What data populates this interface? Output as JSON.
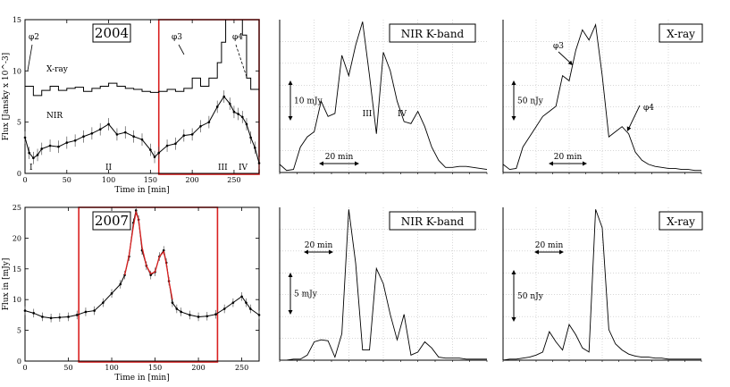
{
  "chart_data": [
    {
      "id": "p2004",
      "type": "line",
      "title": "2004",
      "xlabel": "Time in [min]",
      "ylabel": "Flux [Jansky x 10^-3]",
      "xlim": [
        0,
        280
      ],
      "ylim": [
        0,
        15
      ],
      "xticks": [
        "0",
        "50",
        "100",
        "150",
        "200",
        "250"
      ],
      "yticks": [
        "0",
        "5",
        "10",
        "15"
      ],
      "highlight": {
        "x": [
          160,
          280
        ],
        "color": "#d92020"
      },
      "labels": {
        "xray": "X-ray",
        "nir": "NIR",
        "phi2": "φ2",
        "phi3": "φ3",
        "phi4": "φ4",
        "I": "I",
        "II": "II",
        "III": "III",
        "IV": "IV"
      },
      "series": [
        {
          "name": "X-ray",
          "shape": "step",
          "x": [
            0,
            10,
            20,
            30,
            40,
            50,
            60,
            70,
            80,
            90,
            100,
            110,
            120,
            130,
            140,
            150,
            160,
            170,
            180,
            190,
            200,
            210,
            220,
            230,
            235,
            240,
            250,
            260,
            265,
            270,
            280
          ],
          "y": [
            8.5,
            7.6,
            8.1,
            8.5,
            8.1,
            8.3,
            8.4,
            8.0,
            8.3,
            8.5,
            8.8,
            8.5,
            8.3,
            8.2,
            8.0,
            7.9,
            8.0,
            8.2,
            8.0,
            8.3,
            9.3,
            8.5,
            9.3,
            10.8,
            12.8,
            15,
            15,
            13.5,
            9.3,
            8.2,
            8.2
          ]
        },
        {
          "name": "NIR",
          "x": [
            0,
            5,
            10,
            15,
            20,
            30,
            40,
            50,
            60,
            70,
            80,
            90,
            100,
            110,
            120,
            130,
            140,
            150,
            155,
            160,
            170,
            180,
            190,
            200,
            210,
            220,
            230,
            238,
            245,
            250,
            255,
            260,
            265,
            270,
            275,
            280
          ],
          "y": [
            3.5,
            2.0,
            1.5,
            1.8,
            2.4,
            2.7,
            2.6,
            3.0,
            3.2,
            3.6,
            3.9,
            4.3,
            4.8,
            3.8,
            4.0,
            3.6,
            3.3,
            2.3,
            1.6,
            2.0,
            2.7,
            2.9,
            3.7,
            3.8,
            4.6,
            5.0,
            6.5,
            7.5,
            6.8,
            6.0,
            5.8,
            5.5,
            4.8,
            3.5,
            2.5,
            1.0
          ]
        }
      ]
    },
    {
      "id": "p2004nir",
      "type": "line",
      "title": "NIR  K-band",
      "scale_label": "10 mJy",
      "time_label": "20 min",
      "labels": {
        "III": "III",
        "IV": "IV"
      },
      "ylim": [
        0,
        15
      ],
      "x": [
        0,
        1,
        2,
        3,
        4,
        5,
        6,
        7,
        8,
        9,
        10,
        11,
        12,
        13,
        14,
        15,
        16,
        17,
        18,
        19,
        20,
        21,
        22,
        23,
        24,
        25,
        26,
        27,
        28,
        29,
        30
      ],
      "y": [
        0.8,
        0.2,
        0.3,
        2.5,
        3.5,
        4.0,
        7.0,
        5.5,
        5.8,
        11.5,
        9.5,
        12.5,
        14.8,
        9.5,
        3.8,
        11.8,
        10.0,
        7.0,
        5.0,
        4.8,
        6.0,
        4.5,
        2.5,
        1.2,
        0.5,
        0.5,
        0.6,
        0.6,
        0.5,
        0.4,
        0.3
      ]
    },
    {
      "id": "p2004xray",
      "type": "line",
      "title": "X-ray",
      "scale_label": "50 nJy",
      "time_label": "20 min",
      "labels": {
        "phi3": "φ3",
        "phi4": "φ4"
      },
      "ylim": [
        0,
        15
      ],
      "x": [
        0,
        1,
        2,
        3,
        4,
        5,
        6,
        7,
        8,
        9,
        10,
        11,
        12,
        13,
        14,
        15,
        16,
        17,
        18,
        19,
        20,
        21,
        22,
        23,
        24,
        25,
        26,
        27,
        28,
        29,
        30
      ],
      "y": [
        0.8,
        0.3,
        0.4,
        2.5,
        3.5,
        4.5,
        5.5,
        6.0,
        6.5,
        9.5,
        9.0,
        12.0,
        14.0,
        13.0,
        14.5,
        9.5,
        3.5,
        4.0,
        4.5,
        3.8,
        2.0,
        1.2,
        0.8,
        0.6,
        0.5,
        0.4,
        0.4,
        0.3,
        0.3,
        0.2,
        0.2
      ]
    },
    {
      "id": "p2007",
      "type": "line",
      "title": "2007",
      "xlabel": "Time in [min]",
      "ylabel": "Flux in [mJy]",
      "xlim": [
        0,
        270
      ],
      "ylim": [
        0,
        25
      ],
      "xticks": [
        "0",
        "50",
        "100",
        "150",
        "200",
        "250"
      ],
      "yticks": [
        "0",
        "5",
        "10",
        "15",
        "20",
        "25"
      ],
      "highlight": {
        "x": [
          62,
          222
        ],
        "color": "#d92020"
      },
      "series": [
        {
          "name": "data",
          "x": [
            0,
            10,
            20,
            30,
            40,
            50,
            60,
            70,
            80,
            90,
            100,
            110,
            115,
            120,
            125,
            128,
            131,
            135,
            140,
            145,
            150,
            155,
            160,
            163,
            166,
            170,
            175,
            180,
            190,
            200,
            210,
            220,
            230,
            240,
            250,
            255,
            260,
            270
          ],
          "y": [
            8.2,
            7.8,
            7.2,
            7.0,
            7.1,
            7.2,
            7.5,
            8.0,
            8.2,
            9.5,
            11.0,
            12.5,
            14.0,
            17.0,
            22.5,
            24.5,
            23.0,
            18.0,
            15.5,
            14.0,
            14.5,
            17.0,
            18.0,
            16.0,
            13.0,
            9.5,
            8.5,
            8.0,
            7.5,
            7.2,
            7.3,
            7.6,
            8.5,
            9.5,
            10.5,
            9.5,
            8.5,
            7.5
          ]
        },
        {
          "name": "fit",
          "x": [
            115,
            120,
            125,
            128,
            131,
            135,
            140,
            145,
            150,
            155,
            160,
            163,
            166,
            170
          ],
          "y": [
            14.0,
            17.2,
            22.0,
            24.2,
            23.0,
            18.5,
            15.5,
            14.2,
            14.5,
            17.0,
            17.8,
            15.8,
            13.0,
            10.0
          ]
        }
      ]
    },
    {
      "id": "p2007nir",
      "type": "line",
      "title": "NIR  K-band",
      "scale_label": "5 mJy",
      "time_label": "20 min",
      "ylim": [
        0,
        15
      ],
      "x": [
        0,
        1,
        2,
        3,
        4,
        5,
        6,
        7,
        8,
        9,
        10,
        11,
        12,
        13,
        14,
        15,
        16,
        17,
        18,
        19,
        20,
        21,
        22,
        23,
        24,
        25,
        26,
        27,
        28,
        29,
        30
      ],
      "y": [
        0.0,
        0.0,
        0.1,
        0.1,
        0.5,
        1.8,
        2.0,
        1.9,
        0.3,
        2.6,
        14.8,
        9.5,
        1.0,
        1.0,
        9.0,
        7.5,
        4.5,
        2.0,
        4.5,
        0.5,
        0.8,
        1.8,
        1.2,
        0.3,
        0.2,
        0.2,
        0.2,
        0.1,
        0.1,
        0.1,
        0.1
      ]
    },
    {
      "id": "p2007xray",
      "type": "line",
      "title": "X-ray",
      "scale_label": "50 nJy",
      "time_label": "20 min",
      "ylim": [
        0,
        15
      ],
      "x": [
        0,
        1,
        2,
        3,
        4,
        5,
        6,
        7,
        8,
        9,
        10,
        11,
        12,
        13,
        14,
        15,
        16,
        17,
        18,
        19,
        20,
        21,
        22,
        23,
        24,
        25,
        26,
        27,
        28,
        29,
        30
      ],
      "y": [
        0.0,
        0.1,
        0.1,
        0.2,
        0.3,
        0.5,
        0.8,
        2.8,
        1.8,
        1.0,
        3.5,
        2.5,
        1.2,
        0.8,
        14.8,
        13.0,
        3.0,
        1.6,
        1.0,
        0.6,
        0.4,
        0.3,
        0.3,
        0.2,
        0.2,
        0.1,
        0.1,
        0.1,
        0.1,
        0.1,
        0.1
      ]
    }
  ]
}
